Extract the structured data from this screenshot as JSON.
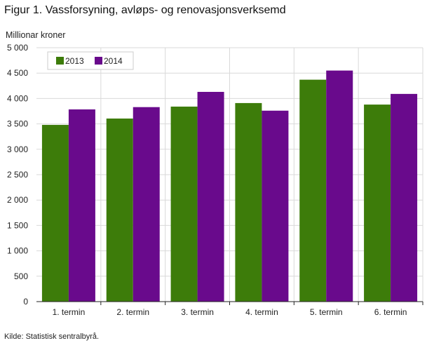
{
  "title": "Figur 1. Vassforsyning, avløps- og renovasjonsverksemd",
  "unit_label": "Millionar  kroner",
  "source": "Kilde: Statistisk sentralbyrå.",
  "chart_data": {
    "type": "bar",
    "categories": [
      "1. termin",
      "2. termin",
      "3. termin",
      "4. termin",
      "5. termin",
      "6. termin"
    ],
    "series": [
      {
        "name": "2013",
        "color": "#3d7c0a",
        "values": [
          3480,
          3605,
          3840,
          3910,
          4370,
          3880
        ]
      },
      {
        "name": "2014",
        "color": "#690a8c",
        "values": [
          3785,
          3830,
          4130,
          3760,
          4550,
          4090
        ]
      }
    ],
    "ylim": [
      0,
      5000
    ],
    "yticks": [
      0,
      500,
      1000,
      1500,
      2000,
      2500,
      3000,
      3500,
      4000,
      4500,
      5000
    ],
    "ytick_labels": [
      "0",
      "500",
      "1 000",
      "1 500",
      "2 000",
      "2 500",
      "3 000",
      "3 500",
      "4 000",
      "4 500",
      "5 000"
    ],
    "grid": true,
    "legend": "top-left"
  }
}
